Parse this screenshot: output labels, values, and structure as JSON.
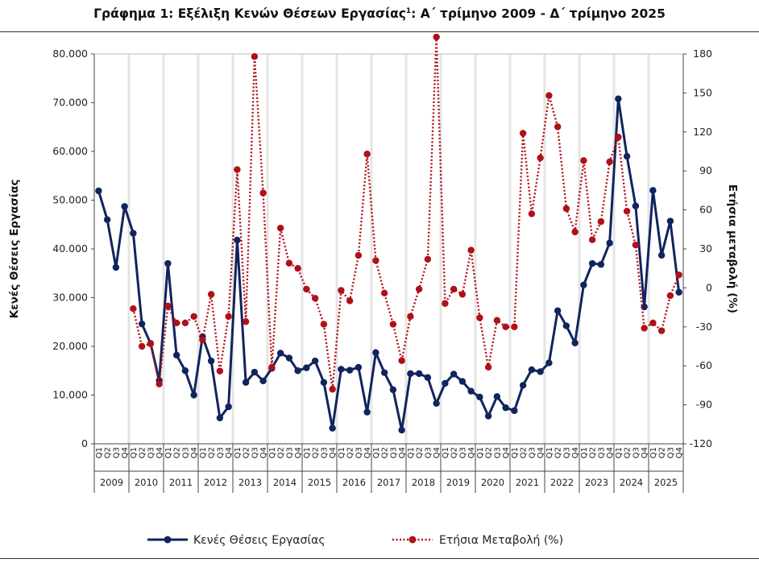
{
  "title": "Γράφημα 1: Εξέλιξη Κενών Θέσεων Εργασίας",
  "title_sup": "1",
  "title_suffix": ": Α΄ τρίμηνο 2009 - Δ΄ τρίμηνο 2025",
  "chart_data": {
    "type": "line",
    "ylabel": "Κενές Θέσεις Εργασίας",
    "y2label": "Ετήσια μεταβολή (%)",
    "ylim": [
      0,
      80000
    ],
    "y2lim": [
      -120,
      180
    ],
    "yticks": [
      "0",
      "10.000",
      "20.000",
      "30.000",
      "40.000",
      "50.000",
      "60.000",
      "70.000",
      "80.000"
    ],
    "y2ticks": [
      "-120",
      "-90",
      "-60",
      "-30",
      "0",
      "30",
      "60",
      "90",
      "120",
      "150",
      "180"
    ],
    "years": [
      "2009",
      "2010",
      "2011",
      "2012",
      "2013",
      "2014",
      "2015",
      "2016",
      "2017",
      "2018",
      "2019",
      "2020",
      "2021",
      "2022",
      "2023",
      "2024",
      "2025"
    ],
    "quarters": [
      "Q1",
      "Q2",
      "Q3",
      "Q4"
    ],
    "legend_position": "bottom",
    "series": [
      {
        "name": "Κενές Θέσεις Εργασίας",
        "axis": "left",
        "color": "#10245e",
        "style": "solid",
        "values": [
          51900,
          46000,
          36200,
          48700,
          43200,
          24600,
          20600,
          13000,
          37000,
          18200,
          15000,
          10000,
          22000,
          17000,
          5300,
          7600,
          41800,
          12600,
          14700,
          12900,
          15500,
          18600,
          17600,
          15000,
          15600,
          17000,
          12600,
          3200,
          15300,
          15100,
          15700,
          6500,
          18700,
          14600,
          11100,
          2800,
          14400,
          14400,
          13600,
          8300,
          12400,
          14300,
          12800,
          10800,
          9600,
          5700,
          9700,
          7400,
          6800,
          12000,
          15200,
          14800,
          16600,
          27300,
          24200,
          20700,
          32600,
          37000,
          36800,
          41200,
          70800,
          59000,
          48800,
          28100,
          52000,
          38700,
          45700,
          31100
        ]
      },
      {
        "name": "Ετήσια Μεταβολή (%)",
        "axis": "right",
        "color": "#b01018",
        "style": "dotted",
        "values": [
          null,
          null,
          null,
          null,
          -16,
          -45,
          -43,
          -74,
          -14,
          -27,
          -27,
          -22,
          -40,
          -5,
          -64,
          -22,
          91,
          -26,
          178,
          73,
          -61,
          46,
          19,
          15,
          -1,
          -8,
          -28,
          -78,
          -2,
          -10,
          25,
          103,
          21,
          -4,
          -28,
          -56,
          -22,
          -1,
          22,
          193,
          -12,
          -1,
          -5,
          29,
          -23,
          -61,
          -25,
          -30,
          -30,
          119,
          57,
          100,
          148,
          124,
          61,
          43,
          98,
          37,
          51,
          97,
          116,
          59,
          33,
          -31,
          -27,
          -33,
          -6,
          10
        ]
      }
    ]
  }
}
